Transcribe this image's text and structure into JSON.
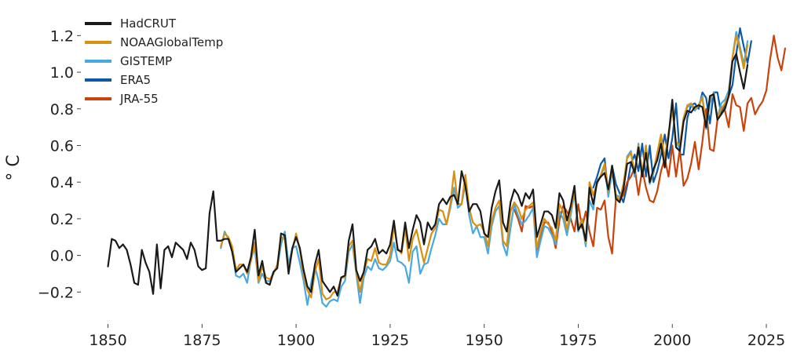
{
  "chart_data": {
    "type": "line",
    "title": "",
    "xlabel": "",
    "ylabel": "° C",
    "xlim": [
      1843,
      2030
    ],
    "ylim": [
      -0.34,
      1.3
    ],
    "xticks": [
      1850,
      1875,
      1900,
      1925,
      1950,
      1975,
      2000,
      2025
    ],
    "yticks": [
      -0.2,
      0.0,
      0.2,
      0.4,
      0.6,
      0.8,
      1.0,
      1.2
    ],
    "xtick_labels": [
      "1850",
      "1875",
      "1900",
      "1925",
      "1950",
      "1975",
      "2000",
      "2025"
    ],
    "ytick_labels": [
      "−0.2",
      "0.0",
      "0.2",
      "0.4",
      "0.6",
      "0.8",
      "1.0",
      "1.2"
    ],
    "grid": false,
    "legend_position": "top-left",
    "series": [
      {
        "name": "HadCRUT",
        "color": "#1a1a1a",
        "x_start": 1850,
        "values": [
          -0.06,
          0.09,
          0.08,
          0.04,
          0.06,
          0.03,
          -0.05,
          -0.15,
          -0.16,
          0.03,
          -0.04,
          -0.09,
          -0.21,
          0.06,
          -0.18,
          0.03,
          0.05,
          -0.01,
          0.07,
          0.05,
          0.03,
          -0.02,
          0.07,
          0.03,
          -0.06,
          -0.08,
          -0.07,
          0.23,
          0.35,
          0.08,
          0.08,
          0.09,
          0.09,
          0.02,
          -0.09,
          -0.07,
          -0.05,
          -0.09,
          -0.01,
          0.14,
          -0.11,
          -0.03,
          -0.15,
          -0.16,
          -0.09,
          -0.07,
          0.12,
          0.11,
          -0.1,
          0.04,
          0.1,
          0.04,
          -0.08,
          -0.17,
          -0.2,
          -0.05,
          0.03,
          -0.14,
          -0.17,
          -0.2,
          -0.17,
          -0.22,
          -0.12,
          -0.11,
          0.08,
          0.17,
          -0.08,
          -0.14,
          -0.09,
          0.03,
          0.05,
          0.09,
          0.01,
          0.03,
          0.01,
          0.06,
          0.19,
          0.03,
          0.02,
          0.18,
          0.04,
          0.14,
          0.22,
          0.18,
          0.06,
          0.18,
          0.14,
          0.17,
          0.28,
          0.31,
          0.28,
          0.32,
          0.33,
          0.28,
          0.46,
          0.38,
          0.24,
          0.28,
          0.28,
          0.24,
          0.12,
          0.1,
          0.26,
          0.35,
          0.41,
          0.18,
          0.13,
          0.29,
          0.36,
          0.33,
          0.27,
          0.34,
          0.31,
          0.36,
          0.1,
          0.17,
          0.24,
          0.24,
          0.22,
          0.15,
          0.34,
          0.3,
          0.19,
          0.27,
          0.38,
          0.14,
          0.17,
          0.08,
          0.37,
          0.28,
          0.4,
          0.43,
          0.45,
          0.36,
          0.49,
          0.31,
          0.29,
          0.36,
          0.5,
          0.51,
          0.45,
          0.59,
          0.43,
          0.56,
          0.4,
          0.47,
          0.52,
          0.61,
          0.48,
          0.65,
          0.85,
          0.59,
          0.57,
          0.73,
          0.79,
          0.78,
          0.81,
          0.82,
          0.81,
          0.7,
          0.87,
          0.88,
          0.74,
          0.77,
          0.8,
          0.87,
          1.06,
          1.1,
          1.0,
          0.91,
          1.04
        ]
      },
      {
        "name": "NOAAGlobalTemp",
        "color": "#d9900f",
        "x_start": 1880,
        "values": [
          0.05,
          0.12,
          0.1,
          0.05,
          -0.08,
          -0.05,
          -0.05,
          -0.1,
          -0.03,
          0.07,
          -0.14,
          -0.06,
          -0.12,
          -0.13,
          -0.1,
          -0.05,
          0.1,
          0.09,
          -0.09,
          0.03,
          0.12,
          0.03,
          -0.11,
          -0.19,
          -0.23,
          -0.09,
          -0.02,
          -0.21,
          -0.24,
          -0.23,
          -0.2,
          -0.2,
          -0.12,
          -0.12,
          0.05,
          0.08,
          -0.09,
          -0.2,
          -0.09,
          -0.02,
          -0.03,
          0.04,
          -0.04,
          -0.05,
          -0.05,
          0.0,
          0.16,
          0.04,
          0.01,
          0.15,
          -0.03,
          0.09,
          0.14,
          0.05,
          -0.04,
          0.04,
          0.12,
          0.15,
          0.25,
          0.24,
          0.17,
          0.28,
          0.46,
          0.28,
          0.28,
          0.44,
          0.26,
          0.18,
          0.16,
          0.17,
          0.13,
          0.05,
          0.19,
          0.26,
          0.3,
          0.08,
          0.05,
          0.24,
          0.29,
          0.26,
          0.2,
          0.25,
          0.27,
          0.29,
          0.04,
          0.13,
          0.2,
          0.17,
          0.15,
          0.08,
          0.28,
          0.24,
          0.14,
          0.25,
          0.35,
          0.15,
          0.2,
          0.07,
          0.4,
          0.33,
          0.39,
          0.44,
          0.5,
          0.35,
          0.48,
          0.33,
          0.3,
          0.39,
          0.53,
          0.56,
          0.45,
          0.6,
          0.45,
          0.6,
          0.4,
          0.46,
          0.56,
          0.66,
          0.53,
          0.67,
          0.8,
          0.62,
          0.6,
          0.75,
          0.82,
          0.83,
          0.8,
          0.82,
          0.86,
          0.71,
          0.86,
          0.88,
          0.75,
          0.8,
          0.83,
          0.88,
          1.08,
          1.2,
          1.12,
          1.02,
          1.15
        ]
      },
      {
        "name": "GISTEMP",
        "color": "#4aa8e0",
        "x_start": 1880,
        "values": [
          0.04,
          0.13,
          0.09,
          0.04,
          -0.11,
          -0.12,
          -0.1,
          -0.15,
          -0.02,
          0.04,
          -0.15,
          -0.1,
          -0.14,
          -0.14,
          -0.09,
          -0.06,
          0.06,
          0.13,
          -0.05,
          0.04,
          0.05,
          -0.04,
          -0.14,
          -0.27,
          -0.15,
          -0.06,
          -0.14,
          -0.26,
          -0.28,
          -0.25,
          -0.24,
          -0.25,
          -0.17,
          -0.14,
          0.02,
          0.06,
          -0.1,
          -0.26,
          -0.12,
          -0.06,
          -0.08,
          -0.02,
          -0.07,
          -0.08,
          -0.06,
          -0.03,
          0.07,
          -0.03,
          -0.04,
          -0.06,
          -0.15,
          0.02,
          0.05,
          -0.1,
          -0.05,
          -0.04,
          0.04,
          0.11,
          0.2,
          0.17,
          0.17,
          0.26,
          0.37,
          0.26,
          0.28,
          0.39,
          0.22,
          0.12,
          0.16,
          0.1,
          0.1,
          0.01,
          0.16,
          0.24,
          0.27,
          0.06,
          0.0,
          0.15,
          0.28,
          0.22,
          0.17,
          0.19,
          0.22,
          0.26,
          -0.01,
          0.08,
          0.16,
          0.15,
          0.11,
          0.06,
          0.24,
          0.2,
          0.11,
          0.22,
          0.34,
          0.13,
          0.18,
          0.05,
          0.3,
          0.25,
          0.41,
          0.43,
          0.49,
          0.32,
          0.46,
          0.33,
          0.32,
          0.37,
          0.54,
          0.57,
          0.43,
          0.61,
          0.44,
          0.6,
          0.39,
          0.45,
          0.54,
          0.65,
          0.51,
          0.66,
          0.8,
          0.62,
          0.58,
          0.75,
          0.81,
          0.82,
          0.79,
          0.82,
          0.87,
          0.69,
          0.83,
          0.89,
          0.75,
          0.83,
          0.85,
          0.9,
          1.08,
          1.22,
          1.14,
          1.04,
          1.17
        ]
      },
      {
        "name": "ERA5",
        "color": "#0b5aa8",
        "x_start": 1979,
        "values": [
          0.37,
          0.43,
          0.5,
          0.53,
          0.33,
          0.49,
          0.39,
          0.34,
          0.29,
          0.38,
          0.5,
          0.55,
          0.46,
          0.61,
          0.43,
          0.6,
          0.4,
          0.46,
          0.55,
          0.66,
          0.53,
          0.64,
          0.83,
          0.55,
          0.55,
          0.75,
          0.82,
          0.83,
          0.8,
          0.89,
          0.86,
          0.72,
          0.89,
          0.89,
          0.77,
          0.83,
          0.87,
          0.93,
          1.1,
          1.24,
          1.14,
          1.05,
          1.17
        ]
      },
      {
        "name": "JRA-55",
        "color": "#c8440c",
        "x_start": 1958,
        "values": [
          0.25,
          0.2,
          0.13,
          0.27,
          0.26,
          0.27,
          0.03,
          0.11,
          0.18,
          0.18,
          0.13,
          0.04,
          0.19,
          0.27,
          0.24,
          0.2,
          0.13,
          0.28,
          0.15,
          0.24,
          0.13,
          0.05,
          0.26,
          0.25,
          0.3,
          0.1,
          0.01,
          0.31,
          0.3,
          0.33,
          0.4,
          0.43,
          0.48,
          0.33,
          0.47,
          0.37,
          0.3,
          0.29,
          0.35,
          0.46,
          0.53,
          0.43,
          0.6,
          0.43,
          0.58,
          0.38,
          0.42,
          0.5,
          0.62,
          0.47,
          0.62,
          0.8,
          0.58,
          0.57,
          0.74,
          0.81,
          0.79,
          0.7,
          0.88,
          0.82,
          0.81,
          0.68,
          0.83,
          0.86,
          0.77,
          0.81,
          0.84,
          0.9,
          1.07,
          1.2,
          1.08,
          1.01,
          1.13
        ]
      }
    ]
  }
}
